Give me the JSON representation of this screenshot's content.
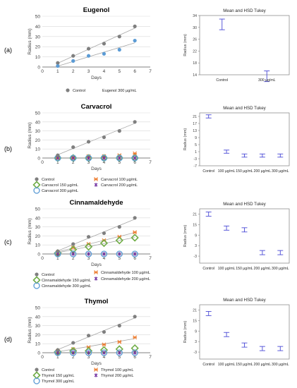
{
  "panels": [
    {
      "letter": "(a)"
    },
    {
      "letter": "(b)"
    },
    {
      "letter": "(c)"
    },
    {
      "letter": "(d)"
    }
  ],
  "colors": {
    "control": "#7f7f7f",
    "c1": "#5b9bd5",
    "orange": "#ed7d31",
    "green": "#70ad47",
    "purple": "#7030a0",
    "tukey": "#4a4ad6"
  },
  "chart_data": [
    {
      "type": "scatter",
      "title": "Eugenol",
      "xlabel": "Days",
      "ylabel": "Radius (mm)",
      "xlim": [
        0,
        7
      ],
      "ylim": [
        0,
        50
      ],
      "x_ticks": [
        "0",
        "1",
        "2",
        "3",
        "4",
        "5",
        "6",
        "7"
      ],
      "y_ticks": [
        "0",
        "10",
        "20",
        "30",
        "40",
        "50"
      ],
      "series": [
        {
          "name": "Control",
          "marker": "dot",
          "color": "#7f7f7f",
          "trend": true,
          "x": [
            1,
            2,
            3,
            4,
            5,
            6
          ],
          "y": [
            4,
            11,
            18,
            23,
            30,
            40
          ]
        },
        {
          "name": "Eugenol 300 µg/mL",
          "marker": "dot",
          "color": "#5b9bd5",
          "trend": true,
          "x": [
            1,
            2,
            3,
            4,
            5,
            6
          ],
          "y": [
            1,
            6,
            11,
            13,
            17,
            26
          ]
        }
      ]
    },
    {
      "type": "errorbar",
      "title": "Mean and HSD Tukey",
      "ylabel": "Radius (mm)",
      "ylim": [
        14,
        34
      ],
      "y_ticks": [
        "14",
        "18",
        "22",
        "26",
        "30",
        "34"
      ],
      "categories": [
        "Control",
        "300 µg/mL"
      ],
      "means": [
        31,
        13.5
      ],
      "errors": [
        1.8,
        1.8
      ]
    },
    {
      "type": "scatter",
      "title": "Carvacrol",
      "xlabel": "Days",
      "ylabel": "Radius (mm)",
      "xlim": [
        0,
        7
      ],
      "ylim": [
        0,
        50
      ],
      "x_ticks": [
        "0",
        "1",
        "2",
        "3",
        "4",
        "5",
        "6",
        "7"
      ],
      "y_ticks": [
        "0",
        "10",
        "20",
        "30",
        "40",
        "50"
      ],
      "series": [
        {
          "name": "Control",
          "marker": "dot",
          "color": "#7f7f7f",
          "trend": true,
          "x": [
            1,
            2,
            3,
            4,
            5,
            6
          ],
          "y": [
            3,
            12,
            18,
            23,
            30,
            40
          ]
        },
        {
          "name": "Carvacrol 100 µg/mL",
          "marker": "x",
          "color": "#ed7d31",
          "trend": false,
          "x": [
            1,
            2,
            3,
            4,
            5,
            6
          ],
          "y": [
            1,
            1,
            2,
            2,
            3,
            5
          ]
        },
        {
          "name": "Carvacrol 150 µg/mL",
          "marker": "diamond",
          "color": "#70ad47",
          "trend": false,
          "x": [
            1,
            2,
            3,
            4,
            5,
            6
          ],
          "y": [
            0,
            0,
            0,
            0,
            0,
            0
          ]
        },
        {
          "name": "Carvacrol 200 µg/mL",
          "marker": "star",
          "color": "#7030a0",
          "trend": false,
          "x": [
            1,
            2,
            3,
            4,
            5,
            6
          ],
          "y": [
            0,
            0,
            0,
            0,
            0,
            0
          ]
        },
        {
          "name": "Carvacrol 300 µg/mL",
          "marker": "circle",
          "color": "#5b9bd5",
          "trend": false,
          "x": [
            1,
            2,
            3,
            4,
            5,
            6
          ],
          "y": [
            0,
            0,
            0,
            0,
            0,
            0
          ]
        }
      ]
    },
    {
      "type": "errorbar",
      "title": "Mean and HSD Tukey",
      "ylabel": "Radius (mm)",
      "ylim": [
        -7,
        23
      ],
      "y_ticks": [
        "-7",
        "-3",
        "1",
        "5",
        "9",
        "13",
        "17",
        "21"
      ],
      "categories": [
        "Control",
        "100 µg/mL",
        "150 µg/mL",
        "200 µg/mL",
        "300 µg/mL"
      ],
      "means": [
        21,
        1,
        -1.2,
        -1.2,
        -1.2
      ],
      "errors": [
        0.9,
        0.9,
        0.9,
        0.9,
        0.9
      ]
    },
    {
      "type": "scatter",
      "title": "Cinnamaldehyde",
      "xlabel": "Days",
      "ylabel": "Radius (mm)",
      "xlim": [
        0,
        7
      ],
      "ylim": [
        0,
        50
      ],
      "x_ticks": [
        "0",
        "1",
        "2",
        "3",
        "4",
        "5",
        "6",
        "7"
      ],
      "y_ticks": [
        "0",
        "10",
        "20",
        "30",
        "40",
        "50"
      ],
      "series": [
        {
          "name": "Control",
          "marker": "dot",
          "color": "#7f7f7f",
          "trend": true,
          "x": [
            1,
            2,
            3,
            4,
            5,
            6
          ],
          "y": [
            3,
            11,
            19,
            23,
            30,
            40
          ]
        },
        {
          "name": "Cinnamaldehyde 100 µg/mL",
          "marker": "x",
          "color": "#ed7d31",
          "trend": true,
          "x": [
            1,
            2,
            3,
            4,
            5,
            6
          ],
          "y": [
            2,
            7,
            11,
            15,
            19,
            24
          ]
        },
        {
          "name": "Cinnamaldehyde 150 µg/mL",
          "marker": "diamond",
          "color": "#70ad47",
          "trend": true,
          "x": [
            1,
            2,
            3,
            4,
            5,
            6
          ],
          "y": [
            1,
            5,
            8,
            12,
            15,
            18
          ]
        },
        {
          "name": "Cinnamaldehyde 200 µg/mL",
          "marker": "star",
          "color": "#7030a0",
          "trend": false,
          "x": [
            1,
            2,
            3,
            4,
            5,
            6
          ],
          "y": [
            0,
            0,
            0,
            0,
            0,
            0
          ]
        },
        {
          "name": "Cinnamaldehyde 300 µg/mL",
          "marker": "circle",
          "color": "#5b9bd5",
          "trend": false,
          "x": [
            1,
            2,
            3,
            4,
            5,
            6
          ],
          "y": [
            0,
            0,
            0,
            0,
            0,
            0
          ]
        }
      ]
    },
    {
      "type": "errorbar",
      "title": "Mean and HSD Tukey",
      "ylabel": "Radius (mm)",
      "ylim": [
        -7,
        24
      ],
      "y_ticks": [
        "-3",
        "3",
        "9",
        "15",
        "21"
      ],
      "categories": [
        "Control",
        "100 µg/mL",
        "150 µg/mL",
        "200 µg/mL",
        "300 µg/mL"
      ],
      "means": [
        21,
        13,
        12,
        -1,
        -1
      ],
      "errors": [
        1.2,
        1.2,
        1.2,
        1.2,
        1.2
      ]
    },
    {
      "type": "scatter",
      "title": "Thymol",
      "xlabel": "Days",
      "ylabel": "Radius (mm)",
      "xlim": [
        0,
        7
      ],
      "ylim": [
        0,
        50
      ],
      "x_ticks": [
        "0",
        "1",
        "2",
        "3",
        "4",
        "5",
        "6",
        "7"
      ],
      "y_ticks": [
        "0",
        "10",
        "20",
        "30",
        "40",
        "50"
      ],
      "series": [
        {
          "name": "Control",
          "marker": "dot",
          "color": "#7f7f7f",
          "trend": true,
          "x": [
            1,
            2,
            3,
            4,
            5,
            6
          ],
          "y": [
            3,
            11,
            19,
            23,
            30,
            40
          ]
        },
        {
          "name": "Thymol 100 µg/mL",
          "marker": "x",
          "color": "#ed7d31",
          "trend": true,
          "x": [
            1,
            2,
            3,
            4,
            5,
            6
          ],
          "y": [
            2,
            4,
            6,
            9,
            12,
            17
          ]
        },
        {
          "name": "Thymol 150 µg/mL",
          "marker": "diamond",
          "color": "#70ad47",
          "trend": false,
          "x": [
            1,
            2,
            3,
            4,
            5,
            6
          ],
          "y": [
            1,
            2,
            2,
            3,
            4,
            5
          ]
        },
        {
          "name": "Thymol 200 µg/mL",
          "marker": "star",
          "color": "#7030a0",
          "trend": false,
          "x": [
            1,
            2,
            3,
            4,
            5,
            6
          ],
          "y": [
            0,
            0,
            0,
            0,
            0,
            0
          ]
        },
        {
          "name": "Thymol 300 µg/mL",
          "marker": "circle",
          "color": "#5b9bd5",
          "trend": false,
          "x": [
            1,
            2,
            3,
            4,
            5,
            6
          ],
          "y": [
            0,
            0,
            0,
            0,
            0,
            0
          ]
        }
      ]
    },
    {
      "type": "errorbar",
      "title": "Mean and HSD Tukey",
      "ylabel": "Radius (mm)",
      "ylim": [
        -7,
        24
      ],
      "y_ticks": [
        "-3",
        "3",
        "9",
        "15",
        "21"
      ],
      "categories": [
        "Control",
        "100 µg/mL",
        "150 µg/mL",
        "200 µg/mL",
        "300 µg/mL"
      ],
      "means": [
        19,
        7,
        1,
        -1,
        -1
      ],
      "errors": [
        1.2,
        1.2,
        1.2,
        1.2,
        1.2
      ]
    }
  ]
}
